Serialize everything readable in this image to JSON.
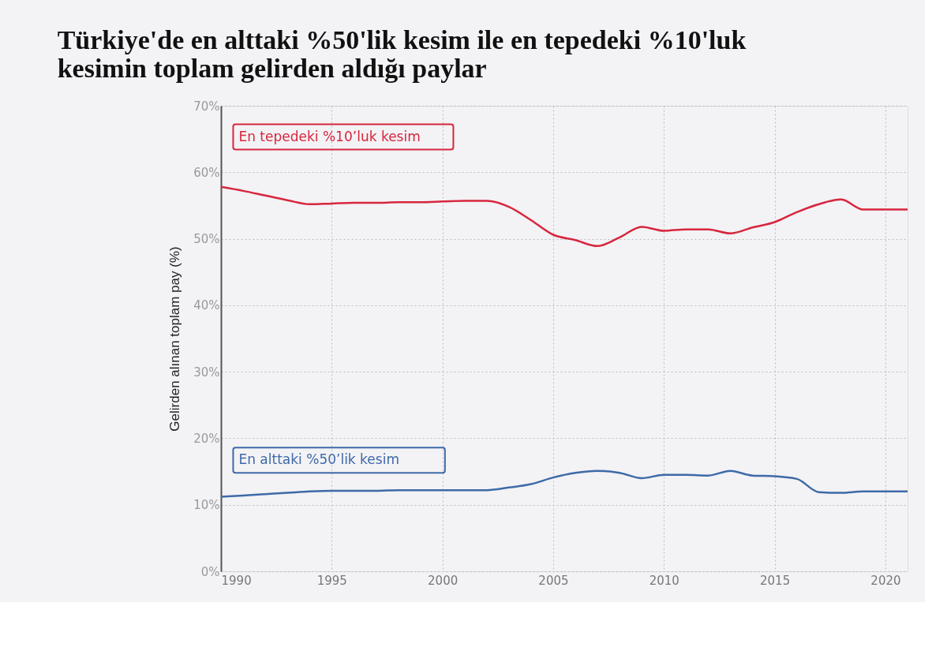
{
  "chart_data": {
    "type": "line",
    "title": "Türkiye'de en alttaki %50'lik kesim ile en tepedeki %10'luk kesimin toplam gelirden aldığı paylar",
    "ylabel": "Gelirden alınan toplam pay (%)",
    "x": [
      1990,
      1991,
      1992,
      1993,
      1994,
      1995,
      1996,
      1997,
      1998,
      1999,
      2000,
      2001,
      2002,
      2003,
      2004,
      2005,
      2006,
      2007,
      2008,
      2009,
      2010,
      2011,
      2012,
      2013,
      2014,
      2015,
      2016,
      2017,
      2018,
      2019,
      2020,
      2021
    ],
    "series": [
      {
        "name": "En tepedeki %10’luk kesim",
        "color": "#d7263d",
        "values": [
          57.8,
          57.2,
          56.5,
          55.8,
          55.2,
          55.3,
          55.4,
          55.4,
          55.5,
          55.5,
          55.6,
          55.7,
          55.7,
          54.8,
          52.8,
          50.6,
          49.8,
          48.9,
          50.2,
          51.8,
          51.2,
          51.4,
          51.4,
          50.8,
          51.7,
          52.5,
          54.0,
          55.2,
          55.9,
          54.4,
          54.4,
          54.4
        ]
      },
      {
        "name": "En alttaki %50’lik kesim",
        "color": "#3e6aa8",
        "values": [
          11.2,
          11.4,
          11.6,
          11.8,
          12.0,
          12.1,
          12.1,
          12.1,
          12.2,
          12.2,
          12.2,
          12.2,
          12.2,
          12.6,
          13.1,
          14.1,
          14.8,
          15.1,
          14.8,
          14.0,
          14.5,
          14.5,
          14.4,
          15.1,
          14.4,
          14.3,
          13.9,
          11.9,
          11.8,
          12.0,
          12.0,
          12.0
        ]
      }
    ],
    "xlim": [
      1990,
      2021
    ],
    "xticks": [
      1990,
      1995,
      2000,
      2005,
      2010,
      2015,
      2020
    ],
    "ylim": [
      0,
      70
    ],
    "yticks": [
      {
        "value": 0,
        "label": "0%"
      },
      {
        "value": 10,
        "label": "10%"
      },
      {
        "value": 20,
        "label": "20%"
      },
      {
        "value": 30,
        "label": "30%"
      },
      {
        "value": 40,
        "label": "40%"
      },
      {
        "value": 50,
        "label": "50%"
      },
      {
        "value": 60,
        "label": "60%"
      },
      {
        "value": 70,
        "label": "70%"
      }
    ],
    "grid": true,
    "marker": "none",
    "line_style": "solid"
  }
}
